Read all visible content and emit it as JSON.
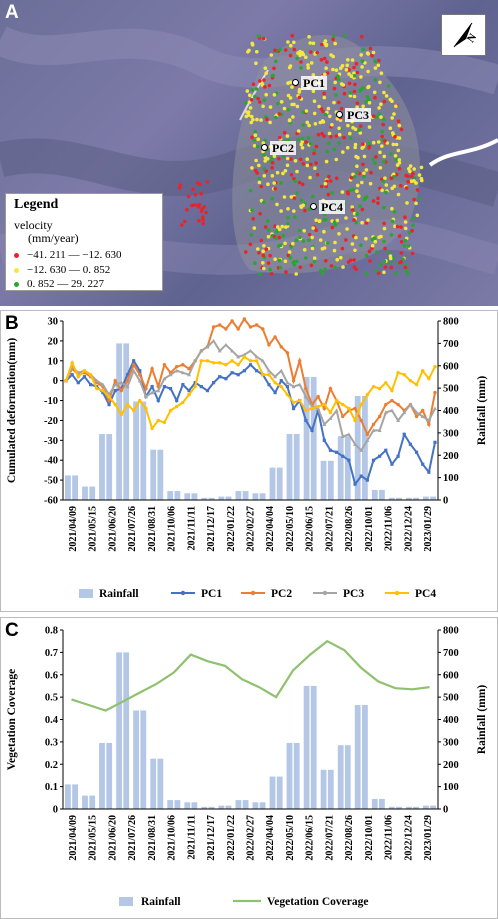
{
  "panels": {
    "a": "A",
    "b": "B",
    "c": "C"
  },
  "map": {
    "legend_title": "Legend",
    "legend_velocity": "velocity",
    "legend_unit": "(mm/year)",
    "legend_items": [
      {
        "label": "−41. 211 — −12. 630",
        "color": "#e8242a"
      },
      {
        "label": "−12. 630 — 0. 852",
        "color": "#f4e83c"
      },
      {
        "label": "0. 852 — 29. 227",
        "color": "#2aa532"
      }
    ],
    "points": [
      {
        "label": "PC1"
      },
      {
        "label": "PC3"
      },
      {
        "label": "PC2"
      },
      {
        "label": "PC4"
      }
    ],
    "north_label": "N"
  },
  "chart_data": [
    {
      "type": "bar+line",
      "ylabel": "Cumulated deformation(mm)",
      "y2label": "Rainfall (mm)",
      "ylim": [
        -60,
        30
      ],
      "yticks": [
        -60,
        -50,
        -40,
        -30,
        -20,
        -10,
        0,
        10,
        20,
        30
      ],
      "y2lim": [
        0,
        800
      ],
      "y2ticks": [
        0,
        100,
        200,
        300,
        400,
        500,
        600,
        700,
        800
      ],
      "x_tick_labels": [
        "2021/04/09",
        "2021/05/15",
        "2021/06/20",
        "2021/07/26",
        "2021/08/31",
        "2021/10/06",
        "2021/11/11",
        "2021/12/17",
        "2022/01/22",
        "2022/02/27",
        "2022/04/04",
        "2022/05/10",
        "2022/06/15",
        "2022/07/21",
        "2022/08/26",
        "2022/10/01",
        "2022/11/06",
        "2022/12/24",
        "2023/01/29"
      ],
      "rainfall_by_month": [
        {
          "month": "2021-04",
          "value": 110
        },
        {
          "month": "2021-05",
          "value": 60
        },
        {
          "month": "2021-06",
          "value": 295
        },
        {
          "month": "2021-07",
          "value": 700
        },
        {
          "month": "2021-08",
          "value": 440
        },
        {
          "month": "2021-09",
          "value": 225
        },
        {
          "month": "2021-10",
          "value": 40
        },
        {
          "month": "2021-11",
          "value": 30
        },
        {
          "month": "2021-12",
          "value": 10
        },
        {
          "month": "2022-01",
          "value": 15
        },
        {
          "month": "2022-02",
          "value": 40
        },
        {
          "month": "2022-03",
          "value": 30
        },
        {
          "month": "2022-04",
          "value": 145
        },
        {
          "month": "2022-05",
          "value": 295
        },
        {
          "month": "2022-06",
          "value": 550
        },
        {
          "month": "2022-07",
          "value": 175
        },
        {
          "month": "2022-08",
          "value": 285
        },
        {
          "month": "2022-09",
          "value": 465
        },
        {
          "month": "2022-10",
          "value": 45
        },
        {
          "month": "2022-11",
          "value": 10
        },
        {
          "month": "2022-12",
          "value": 10
        },
        {
          "month": "2023-01",
          "value": 15
        }
      ],
      "series": [
        {
          "name": "PC1",
          "color": "#4472c4",
          "values": [
            0,
            3,
            -1,
            2,
            -2,
            -3,
            -6,
            -12,
            -5,
            -4,
            3,
            10,
            5,
            -8,
            -3,
            -10,
            -3,
            -4,
            -10,
            -2,
            -5,
            -1,
            -3,
            -5,
            -1,
            2,
            1,
            4,
            3,
            5,
            8,
            5,
            3,
            -2,
            -6,
            0,
            -3,
            -14,
            -10,
            -20,
            -25,
            -15,
            -30,
            -35,
            -36,
            -38,
            -40,
            -52,
            -48,
            -50,
            -40,
            -38,
            -35,
            -42,
            -38,
            -27,
            -32,
            -36,
            -42,
            -46,
            -31
          ]
        },
        {
          "name": "PC2",
          "color": "#ed7d31",
          "values": [
            0,
            6,
            3,
            4,
            2,
            -1,
            -3,
            -10,
            0,
            -5,
            0,
            8,
            3,
            -4,
            6,
            -3,
            8,
            4,
            7,
            8,
            6,
            10,
            15,
            17,
            27,
            28,
            26,
            30,
            26,
            31,
            27,
            28,
            26,
            18,
            22,
            17,
            14,
            0,
            10,
            -4,
            -12,
            -8,
            -14,
            -4,
            -10,
            -18,
            -15,
            -14,
            -20,
            -27,
            -22,
            -18,
            -12,
            -10,
            -12,
            -15,
            -12,
            -18,
            -15,
            -22,
            -6
          ]
        },
        {
          "name": "PC3",
          "color": "#a5a5a5",
          "values": [
            0,
            7,
            4,
            5,
            3,
            0,
            -2,
            -7,
            -2,
            -1,
            -3,
            5,
            0,
            -8,
            -6,
            -5,
            1,
            3,
            5,
            4,
            3,
            10,
            15,
            17,
            20,
            15,
            18,
            15,
            12,
            13,
            15,
            12,
            10,
            5,
            2,
            5,
            -1,
            -3,
            -2,
            -8,
            -13,
            -14,
            -22,
            -19,
            -15,
            -28,
            -27,
            -32,
            -35,
            -30,
            -25,
            -25,
            -16,
            -15,
            -20,
            -16,
            -12,
            -16,
            -18,
            -20,
            -14
          ]
        },
        {
          "name": "PC4",
          "color": "#ffc000",
          "values": [
            0,
            9,
            2,
            5,
            3,
            -4,
            -5,
            -8,
            -12,
            -17,
            -12,
            -15,
            -10,
            -14,
            -24,
            -20,
            -21,
            -15,
            -13,
            -11,
            -7,
            -3,
            10,
            10,
            9,
            9,
            8,
            10,
            8,
            12,
            10,
            10,
            3,
            3,
            -1,
            -3,
            -7,
            -11,
            -10,
            -15,
            -14,
            -13,
            -12,
            -16,
            -10,
            -12,
            -14,
            -20,
            -12,
            -7,
            -3,
            -4,
            -1,
            -5,
            4,
            3,
            0,
            -2,
            5,
            1,
            7
          ]
        }
      ],
      "legend": [
        "Rainfall",
        "PC1",
        "PC2",
        "PC3",
        "PC4"
      ],
      "rainfall_color": "#b4c7e7"
    },
    {
      "type": "bar+line",
      "ylabel": "Vegetation Coverage",
      "y2label": "Rainfall (mm)",
      "ylim": [
        0,
        0.8
      ],
      "yticks": [
        "0",
        "0.1",
        "0.2",
        "0.3",
        "0.4",
        "0.5",
        "0.6",
        "0.7",
        "0.8"
      ],
      "y2lim": [
        0,
        800
      ],
      "y2ticks": [
        0,
        100,
        200,
        300,
        400,
        500,
        600,
        700,
        800
      ],
      "x_tick_labels": [
        "2021/04/09",
        "2021/05/15",
        "2021/06/20",
        "2021/07/26",
        "2021/08/31",
        "2021/10/06",
        "2021/11/11",
        "2021/12/17",
        "2022/01/22",
        "2022/02/27",
        "2022/04/04",
        "2022/05/10",
        "2022/06/15",
        "2022/07/21",
        "2022/08/26",
        "2022/10/01",
        "2022/11/06",
        "2022/12/24",
        "2023/01/29"
      ],
      "vegetation_coverage_by_month": [
        {
          "month": "2021-04",
          "value": 0.49
        },
        {
          "month": "2021-05",
          "value": 0.465
        },
        {
          "month": "2021-06",
          "value": 0.44
        },
        {
          "month": "2021-07",
          "value": 0.48
        },
        {
          "month": "2021-08",
          "value": 0.52
        },
        {
          "month": "2021-09",
          "value": 0.56
        },
        {
          "month": "2021-10",
          "value": 0.61
        },
        {
          "month": "2021-11",
          "value": 0.69
        },
        {
          "month": "2021-12",
          "value": 0.66
        },
        {
          "month": "2022-01",
          "value": 0.64
        },
        {
          "month": "2022-02",
          "value": 0.58
        },
        {
          "month": "2022-03",
          "value": 0.545
        },
        {
          "month": "2022-04",
          "value": 0.5
        },
        {
          "month": "2022-05",
          "value": 0.62
        },
        {
          "month": "2022-06",
          "value": 0.69
        },
        {
          "month": "2022-07",
          "value": 0.75
        },
        {
          "month": "2022-08",
          "value": 0.71
        },
        {
          "month": "2022-09",
          "value": 0.63
        },
        {
          "month": "2022-10",
          "value": 0.57
        },
        {
          "month": "2022-11",
          "value": 0.54
        },
        {
          "month": "2022-12",
          "value": 0.535
        },
        {
          "month": "2023-01",
          "value": 0.545
        }
      ],
      "legend": [
        "Rainfall",
        "Vegetation Coverage"
      ],
      "line_color": "#8fc16f",
      "rainfall_color": "#b4c7e7"
    }
  ]
}
